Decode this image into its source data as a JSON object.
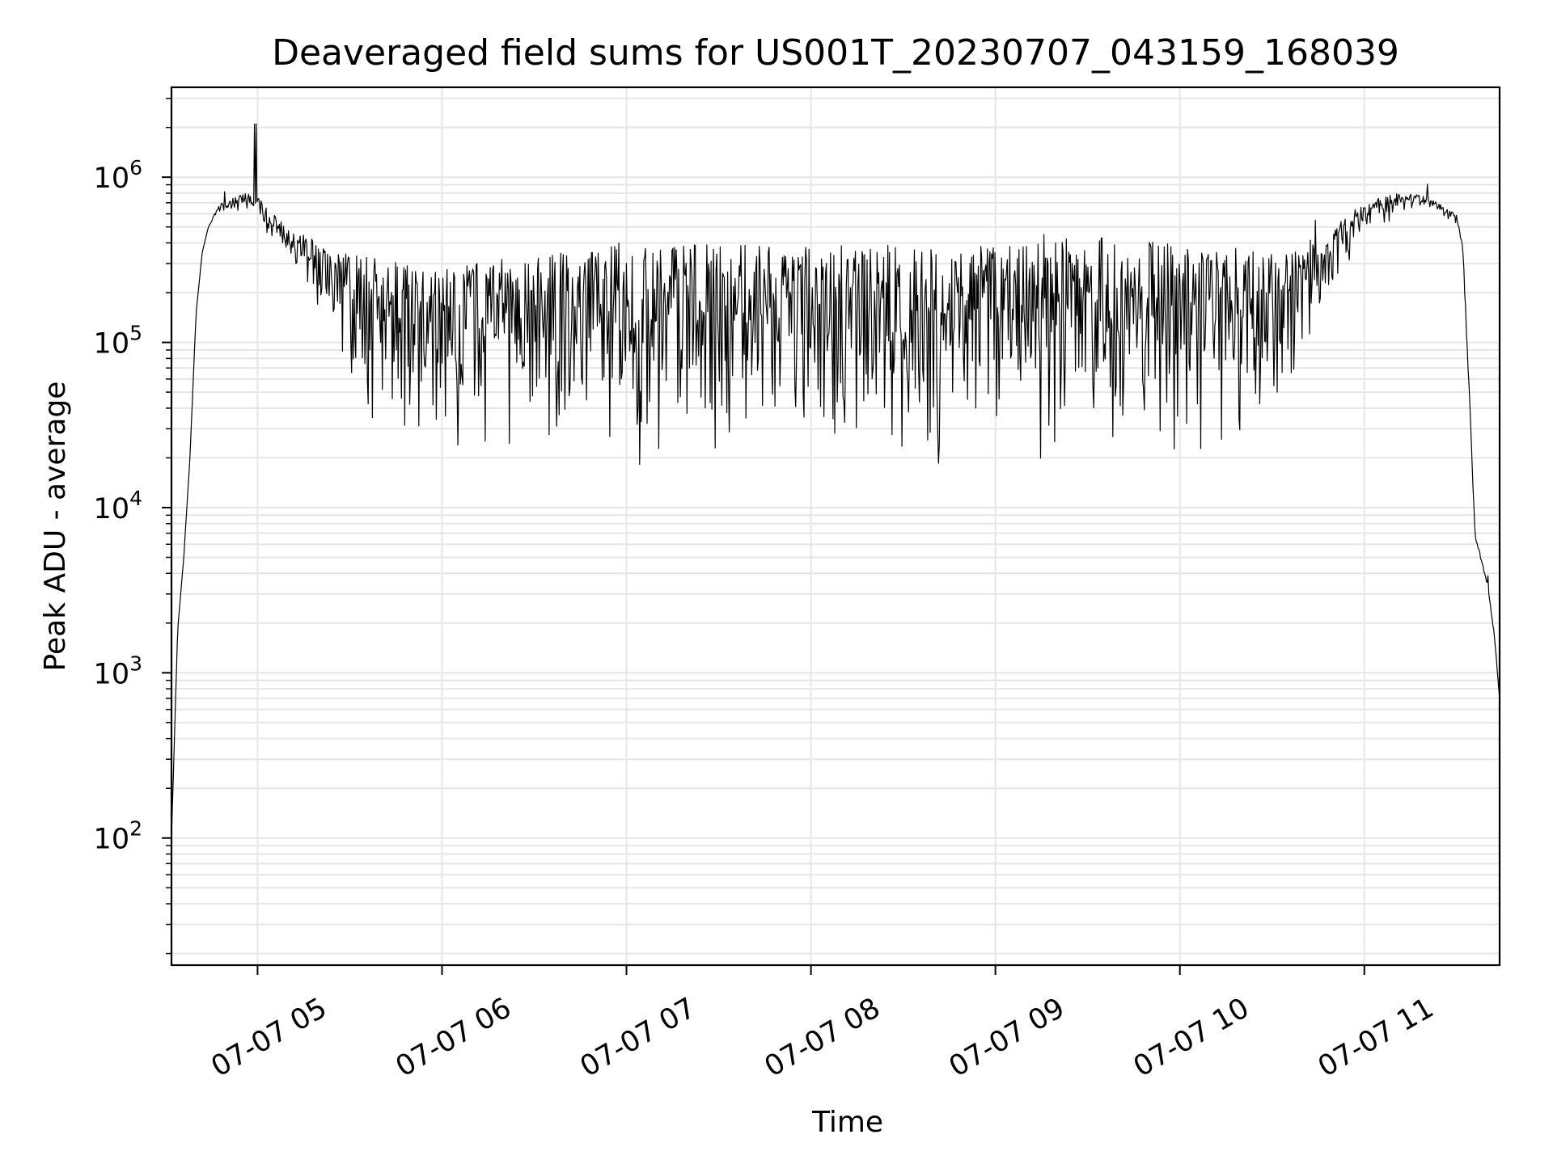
{
  "chart_data": {
    "type": "line",
    "title": "Deaveraged field sums for US001T_20230707_043159_168039",
    "xlabel": "Time",
    "ylabel": "Peak ADU - average",
    "yscale": "log",
    "grid": true,
    "line_color": "#000000",
    "grid_color": "#e6e6e6",
    "xlim": [
      "2023-07-07 04:32",
      "2023-07-07 11:44"
    ],
    "ylim": [
      17,
      3500000
    ],
    "x_ticks": [
      "07-07 05",
      "07-07 06",
      "07-07 07",
      "07-07 08",
      "07-07 09",
      "07-07 10",
      "07-07 11"
    ],
    "y_ticks": [
      {
        "base": "10",
        "exp": "2",
        "value": 100
      },
      {
        "base": "10",
        "exp": "3",
        "value": 1000
      },
      {
        "base": "10",
        "exp": "4",
        "value": 10000
      },
      {
        "base": "10",
        "exp": "5",
        "value": 100000
      },
      {
        "base": "10",
        "exp": "6",
        "value": 1000000
      }
    ],
    "series": [
      {
        "envelope": {
          "time": [
            "04:32",
            "04:34",
            "04:36",
            "04:38",
            "04:40",
            "04:42",
            "04:44",
            "04:46",
            "04:48",
            "04:50",
            "04:52",
            "04:54",
            "04:56",
            "04:58",
            "05:00",
            "05:05",
            "05:10",
            "05:15",
            "05:20",
            "05:25",
            "05:30",
            "05:35",
            "05:40",
            "05:50",
            "06:00",
            "06:10",
            "06:20",
            "06:30",
            "06:40",
            "06:50",
            "07:00",
            "07:10",
            "07:20",
            "07:30",
            "07:40",
            "07:50",
            "08:00",
            "08:10",
            "08:20",
            "08:30",
            "08:40",
            "08:50",
            "09:00",
            "09:10",
            "09:20",
            "09:30",
            "09:40",
            "09:50",
            "10:00",
            "10:10",
            "10:20",
            "10:30",
            "10:35",
            "10:40",
            "10:45",
            "10:50",
            "10:55",
            "11:00",
            "11:05",
            "11:10",
            "11:15",
            "11:18",
            "11:20",
            "11:24",
            "11:27",
            "11:30",
            "11:32",
            "11:34",
            "11:36",
            "11:38",
            "11:40",
            "11:42",
            "11:44"
          ],
          "upper": [
            100,
            1800,
            5000,
            20000,
            150000,
            350000,
            500000,
            600000,
            700000,
            720000,
            750000,
            780000,
            800000,
            820000,
            800000,
            600000,
            500000,
            450000,
            400000,
            380000,
            350000,
            330000,
            320000,
            300000,
            290000,
            300000,
            320000,
            340000,
            360000,
            380000,
            390000,
            390000,
            390000,
            390000,
            390000,
            390000,
            390000,
            390000,
            390000,
            390000,
            390000,
            390000,
            400000,
            410000,
            420000,
            430000,
            430000,
            420000,
            410000,
            400000,
            380000,
            350000,
            350000,
            400000,
            450000,
            500000,
            600000,
            700000,
            750000,
            800000,
            800000,
            780000,
            760000,
            700000,
            650000,
            600000,
            400000,
            60000,
            7000,
            5000,
            3500,
            2000,
            700
          ],
          "lower": [
            100,
            1800,
            5000,
            20000,
            150000,
            350000,
            500000,
            560000,
            600000,
            600000,
            600000,
            600000,
            600000,
            550000,
            500000,
            400000,
            250000,
            180000,
            120000,
            80000,
            45000,
            30000,
            25000,
            20000,
            19000,
            18000,
            18000,
            18000,
            18000,
            17500,
            17000,
            17000,
            17000,
            17000,
            17000,
            17000,
            16500,
            16500,
            16000,
            16000,
            16000,
            16000,
            17000,
            17500,
            18000,
            18000,
            18000,
            18000,
            18000,
            18000,
            20000,
            25000,
            40000,
            70000,
            120000,
            180000,
            250000,
            400000,
            450000,
            550000,
            600000,
            650000,
            650000,
            600000,
            550000,
            500000,
            350000,
            50000,
            6000,
            4500,
            3000,
            1600,
            700
          ]
        }
      }
    ]
  }
}
